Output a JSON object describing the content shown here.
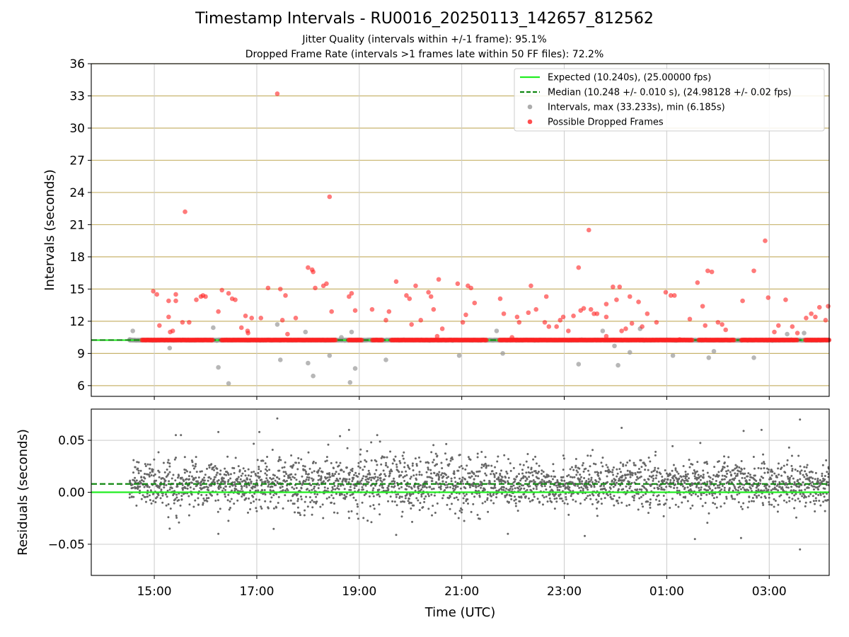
{
  "title": "Timestamp Intervals - RU0016_20250113_142657_812562",
  "subtitle_1": "Jitter Quality (intervals within +/-1 frame): 95.1%",
  "subtitle_2": "Dropped Frame Rate (intervals >1 frames late within 50 FF files): 72.2%",
  "colors": {
    "expected": "#22ee22",
    "median": "#118811",
    "intervals": "#999999",
    "dropped": "#ff2222",
    "residuals": "#666666",
    "gold_grid": "#c8b46e",
    "grid": "#cccccc"
  },
  "chart_data": [
    {
      "type": "scatter",
      "ylabel": "Intervals (seconds)",
      "ylim": [
        5,
        36
      ],
      "yticks": [
        "6",
        "9",
        "12",
        "15",
        "18",
        "21",
        "24",
        "27",
        "30",
        "33",
        "36"
      ],
      "xlim_hours": [
        13.77,
        28.17
      ],
      "xticks": [
        "15:00",
        "17:00",
        "19:00",
        "21:00",
        "23:00",
        "01:00",
        "03:00"
      ],
      "grid": true,
      "legend_position": "top-right",
      "legend": [
        "Expected (10.240s), (25.00000 fps)",
        "Median (10.248 +/- 0.010 s), (24.98128 +/- 0.02 fps)",
        "Intervals, max (33.233s), min (6.185s)",
        "Possible Dropped Frames"
      ],
      "expected": 10.24,
      "median": 10.248,
      "data_start_hour": 14.52,
      "data_end_hour": 28.17,
      "baseline_interval": 10.24,
      "dropped_baseline": 10.25,
      "dropped_points": [
        [
          14.98,
          14.8
        ],
        [
          15.05,
          14.5
        ],
        [
          15.1,
          11.6
        ],
        [
          15.28,
          12.4
        ],
        [
          15.28,
          13.9
        ],
        [
          15.31,
          11.0
        ],
        [
          15.36,
          11.1
        ],
        [
          15.42,
          14.5
        ],
        [
          15.42,
          13.9
        ],
        [
          15.55,
          11.9
        ],
        [
          15.6,
          22.2
        ],
        [
          15.68,
          11.9
        ],
        [
          15.82,
          14.0
        ],
        [
          15.91,
          14.3
        ],
        [
          15.95,
          14.4
        ],
        [
          16.0,
          14.3
        ],
        [
          16.25,
          12.9
        ],
        [
          16.32,
          14.9
        ],
        [
          16.45,
          14.6
        ],
        [
          16.52,
          14.1
        ],
        [
          16.58,
          14.0
        ],
        [
          16.7,
          11.4
        ],
        [
          16.78,
          12.5
        ],
        [
          16.82,
          11.1
        ],
        [
          16.83,
          10.9
        ],
        [
          16.9,
          12.3
        ],
        [
          17.08,
          12.3
        ],
        [
          17.22,
          15.1
        ],
        [
          17.4,
          33.2
        ],
        [
          17.46,
          15.0
        ],
        [
          17.5,
          12.1
        ],
        [
          17.56,
          14.4
        ],
        [
          17.6,
          10.8
        ],
        [
          17.76,
          12.3
        ],
        [
          18.0,
          17.0
        ],
        [
          18.08,
          16.8
        ],
        [
          18.1,
          16.6
        ],
        [
          18.14,
          15.1
        ],
        [
          18.3,
          15.3
        ],
        [
          18.36,
          15.5
        ],
        [
          18.42,
          23.6
        ],
        [
          18.46,
          12.9
        ],
        [
          18.8,
          14.3
        ],
        [
          18.85,
          14.6
        ],
        [
          18.92,
          13.0
        ],
        [
          19.25,
          13.1
        ],
        [
          19.52,
          12.1
        ],
        [
          19.58,
          12.9
        ],
        [
          19.72,
          15.7
        ],
        [
          19.92,
          14.4
        ],
        [
          19.98,
          14.1
        ],
        [
          20.02,
          11.7
        ],
        [
          20.1,
          15.3
        ],
        [
          20.2,
          12.1
        ],
        [
          20.35,
          14.7
        ],
        [
          20.4,
          14.3
        ],
        [
          20.45,
          13.1
        ],
        [
          20.52,
          10.6
        ],
        [
          20.55,
          15.9
        ],
        [
          20.62,
          11.3
        ],
        [
          20.92,
          15.5
        ],
        [
          21.02,
          11.9
        ],
        [
          21.08,
          12.6
        ],
        [
          21.12,
          15.3
        ],
        [
          21.18,
          15.1
        ],
        [
          21.25,
          13.7
        ],
        [
          21.75,
          14.1
        ],
        [
          21.82,
          12.7
        ],
        [
          21.98,
          10.5
        ],
        [
          22.08,
          12.4
        ],
        [
          22.12,
          11.9
        ],
        [
          22.3,
          12.8
        ],
        [
          22.35,
          15.3
        ],
        [
          22.45,
          13.1
        ],
        [
          22.62,
          11.9
        ],
        [
          22.65,
          14.3
        ],
        [
          22.7,
          11.5
        ],
        [
          22.85,
          11.5
        ],
        [
          22.92,
          12.1
        ],
        [
          22.98,
          12.4
        ],
        [
          23.08,
          11.1
        ],
        [
          23.18,
          12.5
        ],
        [
          23.28,
          17.0
        ],
        [
          23.32,
          13.0
        ],
        [
          23.38,
          13.2
        ],
        [
          23.48,
          20.5
        ],
        [
          23.52,
          13.1
        ],
        [
          23.58,
          12.7
        ],
        [
          23.64,
          12.7
        ],
        [
          23.82,
          10.6
        ],
        [
          23.82,
          12.4
        ],
        [
          23.82,
          13.6
        ],
        [
          23.95,
          15.2
        ],
        [
          24.02,
          14.0
        ],
        [
          24.08,
          15.2
        ],
        [
          24.12,
          11.1
        ],
        [
          24.2,
          11.3
        ],
        [
          24.28,
          14.3
        ],
        [
          24.32,
          11.8
        ],
        [
          24.45,
          13.8
        ],
        [
          24.52,
          11.5
        ],
        [
          24.62,
          12.7
        ],
        [
          24.8,
          11.9
        ],
        [
          24.98,
          14.7
        ],
        [
          25.08,
          14.4
        ],
        [
          25.15,
          14.4
        ],
        [
          25.25,
          10.3
        ],
        [
          25.45,
          12.2
        ],
        [
          25.6,
          15.6
        ],
        [
          25.7,
          13.4
        ],
        [
          25.75,
          11.6
        ],
        [
          25.8,
          16.7
        ],
        [
          25.88,
          16.6
        ],
        [
          26.0,
          11.9
        ],
        [
          26.08,
          11.7
        ],
        [
          26.15,
          11.2
        ],
        [
          26.48,
          13.9
        ],
        [
          26.7,
          16.7
        ],
        [
          26.92,
          19.5
        ],
        [
          26.98,
          14.2
        ],
        [
          27.1,
          11.0
        ],
        [
          27.18,
          11.6
        ],
        [
          27.32,
          14.0
        ],
        [
          27.45,
          11.5
        ],
        [
          27.55,
          10.9
        ],
        [
          27.72,
          12.3
        ],
        [
          27.82,
          12.7
        ],
        [
          27.9,
          12.4
        ],
        [
          27.98,
          13.3
        ],
        [
          28.1,
          12.1
        ],
        [
          28.15,
          13.4
        ]
      ],
      "grey_points": [
        [
          14.52,
          10.3
        ],
        [
          14.58,
          11.1
        ],
        [
          15.3,
          9.5
        ],
        [
          16.15,
          11.4
        ],
        [
          16.22,
          10.2
        ],
        [
          16.25,
          7.7
        ],
        [
          16.45,
          6.2
        ],
        [
          17.4,
          11.7
        ],
        [
          17.46,
          8.4
        ],
        [
          17.95,
          11.0
        ],
        [
          18.0,
          8.1
        ],
        [
          18.1,
          6.9
        ],
        [
          18.42,
          8.8
        ],
        [
          18.65,
          10.5
        ],
        [
          18.82,
          6.3
        ],
        [
          18.85,
          11.0
        ],
        [
          18.92,
          7.6
        ],
        [
          19.52,
          8.4
        ],
        [
          20.95,
          8.8
        ],
        [
          21.68,
          11.1
        ],
        [
          21.8,
          9.0
        ],
        [
          23.28,
          8.0
        ],
        [
          23.75,
          11.1
        ],
        [
          23.98,
          9.7
        ],
        [
          24.05,
          7.9
        ],
        [
          24.28,
          9.1
        ],
        [
          24.48,
          11.3
        ],
        [
          25.12,
          8.8
        ],
        [
          25.82,
          8.6
        ],
        [
          25.92,
          9.2
        ],
        [
          26.7,
          8.6
        ],
        [
          27.35,
          10.8
        ],
        [
          27.68,
          10.9
        ]
      ]
    },
    {
      "type": "scatter",
      "xlabel": "Time (UTC)",
      "ylabel": "Residuals (seconds)",
      "ylim": [
        -0.08,
        0.08
      ],
      "yticks": [
        "−0.05",
        "0.00",
        "0.05"
      ],
      "xticks": [
        "15:00",
        "17:00",
        "19:00",
        "21:00",
        "23:00",
        "01:00",
        "03:00"
      ],
      "expected_residual": 0.0,
      "median_residual": 0.008,
      "spread_sd": 0.011,
      "point_count": 2800,
      "outliers": [
        [
          17.4,
          0.071
        ],
        [
          17.05,
          0.058
        ],
        [
          16.25,
          0.058
        ],
        [
          15.42,
          0.055
        ],
        [
          15.52,
          0.055
        ],
        [
          18.8,
          0.06
        ],
        [
          19.35,
          0.055
        ],
        [
          24.12,
          0.062
        ],
        [
          26.5,
          0.059
        ],
        [
          26.85,
          0.06
        ],
        [
          27.6,
          0.07
        ],
        [
          25.55,
          -0.045
        ],
        [
          27.6,
          -0.055
        ],
        [
          15.3,
          -0.035
        ],
        [
          16.25,
          -0.04
        ],
        [
          21.9,
          -0.04
        ],
        [
          23.4,
          -0.042
        ],
        [
          26.45,
          -0.044
        ],
        [
          19.72,
          -0.041
        ]
      ]
    }
  ]
}
